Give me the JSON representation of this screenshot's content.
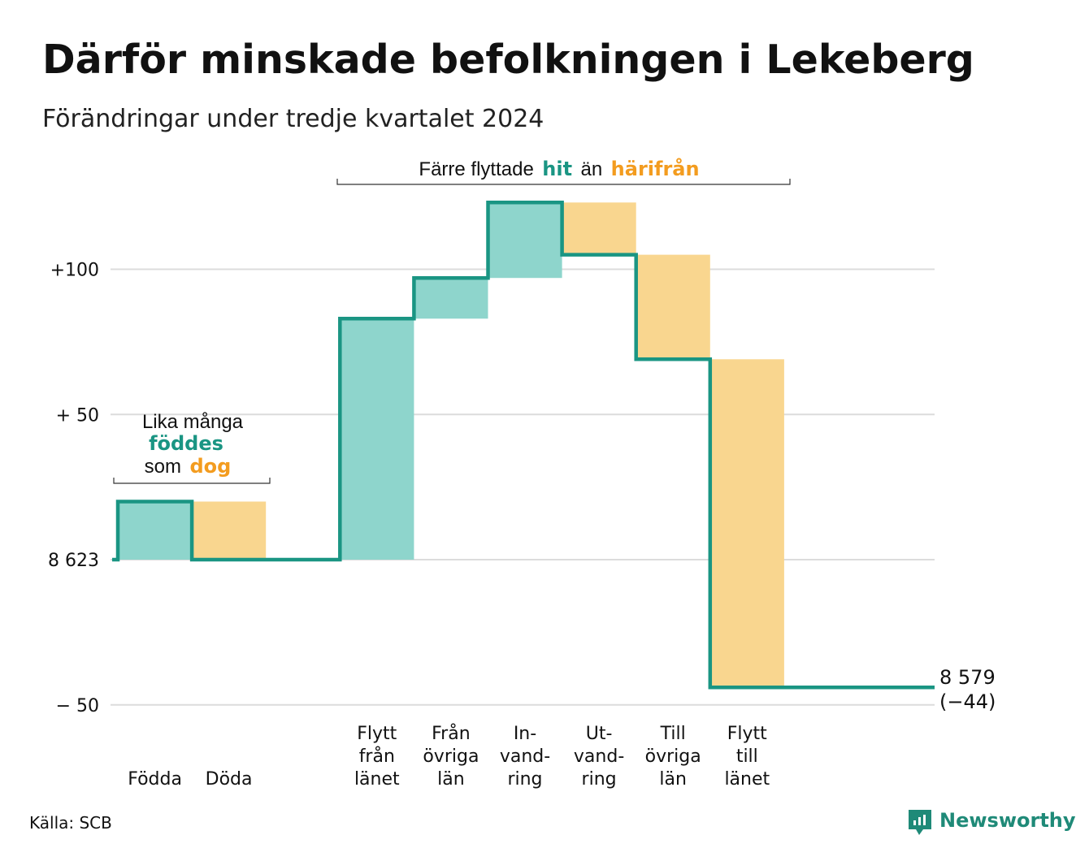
{
  "title": "Därför minskade befolkningen i Lekeberg",
  "subtitle": "Förändringar under tredje kvartalet 2024",
  "source": "Källa: SCB",
  "brand": {
    "name": "Newsworthy",
    "icon": "newsworthy-logo-icon"
  },
  "colors": {
    "increase": "#8ed5cc",
    "decrease": "#f9d68f",
    "line": "#1a9583",
    "accent_green": "#1a9583",
    "accent_orange": "#f39c1f",
    "grid": "#dcdcdc"
  },
  "annotations": {
    "births_deaths": {
      "line1": "Lika många",
      "line2_highlight": "föddes",
      "line3_prefix": "som",
      "line3_highlight": "dog"
    },
    "migration": {
      "prefix": "Färre flyttade",
      "highlight1": "hit",
      "middle": "än",
      "highlight2": "härifrån"
    }
  },
  "end_label": {
    "value": "8 579",
    "change": "(−44)"
  },
  "chart_data": {
    "type": "waterfall",
    "title": "Därför minskade befolkningen i Lekeberg",
    "subtitle": "Förändringar under tredje kvartalet 2024",
    "start_value": 8623,
    "end_value": 8579,
    "net_change": -44,
    "y_ticks": [
      {
        "value": 100,
        "label": "+100"
      },
      {
        "value": 50,
        "label": "+ 50"
      },
      {
        "value": 0,
        "label": "8 623"
      },
      {
        "value": -50,
        "label": "−  50"
      }
    ],
    "ylim": [
      -50,
      120
    ],
    "categories": [
      {
        "label": [
          "Födda"
        ],
        "change": 20,
        "kind": "increase"
      },
      {
        "label": [
          "Döda"
        ],
        "change": -20,
        "kind": "decrease"
      },
      {
        "label": [],
        "change": 0,
        "kind": "spacer"
      },
      {
        "label": [
          "Flytt",
          "från",
          "länet"
        ],
        "change": 83,
        "kind": "increase"
      },
      {
        "label": [
          "Från",
          "övriga",
          "län"
        ],
        "change": 14,
        "kind": "increase"
      },
      {
        "label": [
          "In-",
          "vand-",
          "ring"
        ],
        "change": 26,
        "kind": "increase"
      },
      {
        "label": [
          "Ut-",
          "vand-",
          "ring"
        ],
        "change": -18,
        "kind": "decrease"
      },
      {
        "label": [
          "Till",
          "övriga",
          "län"
        ],
        "change": -36,
        "kind": "decrease"
      },
      {
        "label": [
          "Flytt",
          "till",
          "länet"
        ],
        "change": -113,
        "kind": "decrease"
      }
    ]
  }
}
